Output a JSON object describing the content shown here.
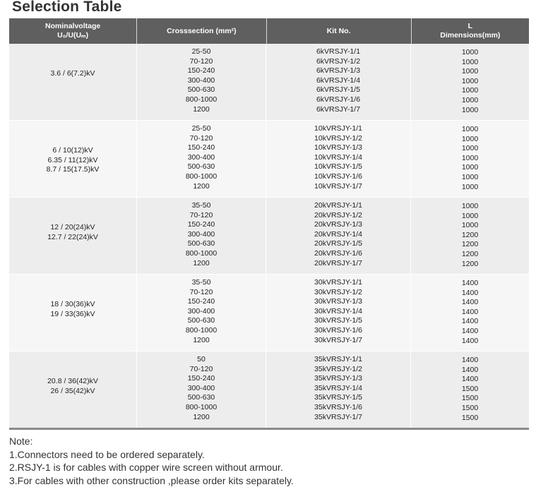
{
  "title": "Selection Table",
  "headers": {
    "voltage_line1": "Nominalvoltage",
    "voltage_line2": "U₀/U(Uₘ)",
    "cross_section": "Crosssection (mm²)",
    "kit_no": "Kit No.",
    "dim_line1": "L",
    "dim_line2": "Dimensions(mm)"
  },
  "groups": [
    {
      "voltages": [
        "3.6 / 6(7.2)kV"
      ],
      "sections": [
        "25-50",
        "70-120",
        "150-240",
        "300-400",
        "500-630",
        "800-1000",
        "1200"
      ],
      "kits": [
        "6kVRSJY-1/1",
        "6kVRSJY-1/2",
        "6kVRSJY-1/3",
        "6kVRSJY-1/4",
        "6kVRSJY-1/5",
        "6kVRSJY-1/6",
        "6kVRSJY-1/7"
      ],
      "dims": [
        "1000",
        "1000",
        "1000",
        "1000",
        "1000",
        "1000",
        "1000"
      ]
    },
    {
      "voltages": [
        "6 / 10(12)kV",
        "6.35 / 11(12)kV",
        "8.7 / 15(17.5)kV"
      ],
      "sections": [
        "25-50",
        "70-120",
        "150-240",
        "300-400",
        "500-630",
        "800-1000",
        "1200"
      ],
      "kits": [
        "10kVRSJY-1/1",
        "10kVRSJY-1/2",
        "10kVRSJY-1/3",
        "10kVRSJY-1/4",
        "10kVRSJY-1/5",
        "10kVRSJY-1/6",
        "10kVRSJY-1/7"
      ],
      "dims": [
        "1000",
        "1000",
        "1000",
        "1000",
        "1000",
        "1000",
        "1000"
      ]
    },
    {
      "voltages": [
        "12 / 20(24)kV",
        "12.7 / 22(24)kV"
      ],
      "sections": [
        "35-50",
        "70-120",
        "150-240",
        "300-400",
        "500-630",
        "800-1000",
        "1200"
      ],
      "kits": [
        "20kVRSJY-1/1",
        "20kVRSJY-1/2",
        "20kVRSJY-1/3",
        "20kVRSJY-1/4",
        "20kVRSJY-1/5",
        "20kVRSJY-1/6",
        "20kVRSJY-1/7"
      ],
      "dims": [
        "1000",
        "1000",
        "1000",
        "1200",
        "1200",
        "1200",
        "1200"
      ]
    },
    {
      "voltages": [
        "18 / 30(36)kV",
        "19 / 33(36)kV"
      ],
      "sections": [
        "35-50",
        "70-120",
        "150-240",
        "300-400",
        "500-630",
        "800-1000",
        "1200"
      ],
      "kits": [
        "30kVRSJY-1/1",
        "30kVRSJY-1/2",
        "30kVRSJY-1/3",
        "30kVRSJY-1/4",
        "30kVRSJY-1/5",
        "30kVRSJY-1/6",
        "30kVRSJY-1/7"
      ],
      "dims": [
        "1400",
        "1400",
        "1400",
        "1400",
        "1400",
        "1400",
        "1400"
      ]
    },
    {
      "voltages": [
        "20.8 / 36(42)kV",
        "26 / 35(42)kV"
      ],
      "sections": [
        "50",
        "70-120",
        "150-240",
        "300-400",
        "500-630",
        "800-1000",
        "1200"
      ],
      "kits": [
        "35kVRSJY-1/1",
        "35kVRSJY-1/2",
        "35kVRSJY-1/3",
        "35kVRSJY-1/4",
        "35kVRSJY-1/5",
        "35kVRSJY-1/6",
        "35kVRSJY-1/7"
      ],
      "dims": [
        "1400",
        "1400",
        "1400",
        "1500",
        "1500",
        "1500",
        "1500"
      ]
    }
  ],
  "notes": {
    "heading": "Note:",
    "items": [
      "1.Connectors need to be ordered separately.",
      "2.RSJY-1 is for cables with copper wire screen without armour.",
      "3.For cables with other construction ,please order kits separately."
    ]
  }
}
